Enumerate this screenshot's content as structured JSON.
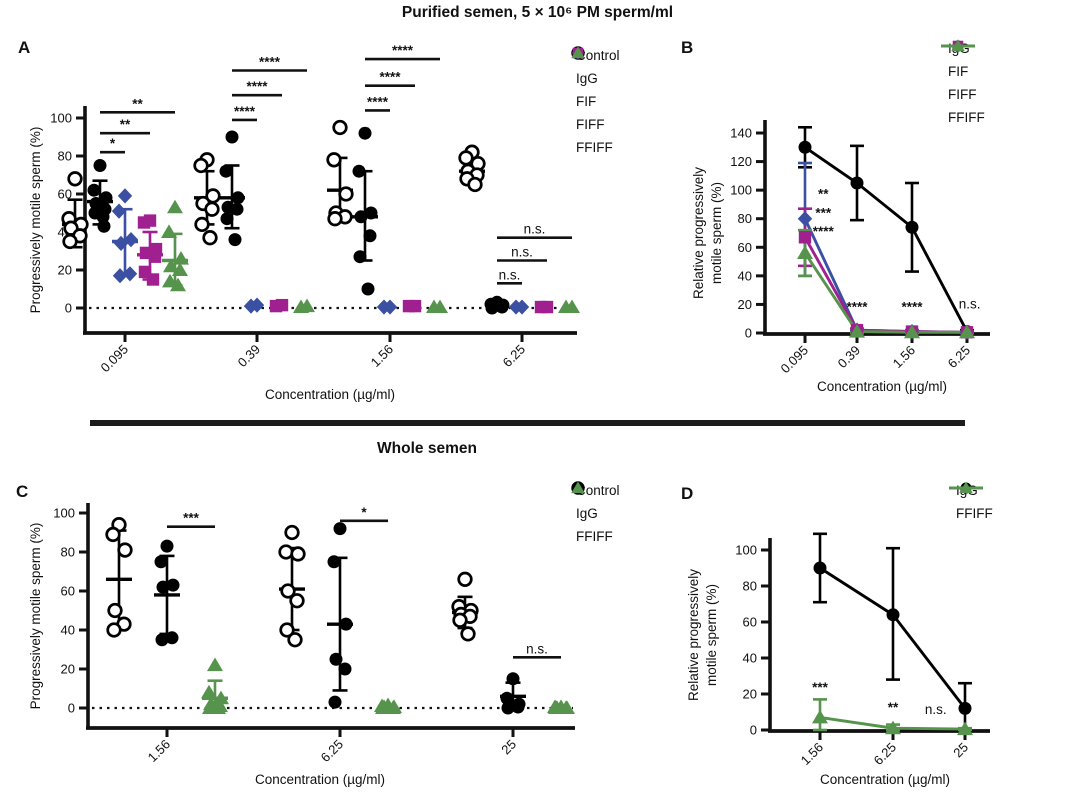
{
  "figure": {
    "top_title": "Purified semen, 5 × 10⁶ PM sperm/ml",
    "bottom_title": "Whole semen",
    "panel_labels": {
      "A": "A",
      "B": "B",
      "C": "C",
      "D": "D"
    }
  },
  "colors": {
    "black": "#000000",
    "blue": "#3B50A2",
    "magenta": "#A0208F",
    "green": "#56934C"
  },
  "chart_data": [
    {
      "panel": "A",
      "type": "scatter",
      "xlabel": "Concentration (µg/ml)",
      "ylabel": "Progressively motile sperm (%)",
      "ylim": [
        0,
        100
      ],
      "yticks": [
        0,
        20,
        40,
        60,
        80,
        100
      ],
      "categories": [
        "0.095",
        "0.39",
        "1.56",
        "6.25"
      ],
      "legend": [
        {
          "label": "Control",
          "marker": "circle-open",
          "color": "#000000"
        },
        {
          "label": "IgG",
          "marker": "circle",
          "color": "#000000"
        },
        {
          "label": "FIF",
          "marker": "diamond",
          "color": "#3B50A2"
        },
        {
          "label": "FIFF",
          "marker": "square",
          "color": "#A0208F"
        },
        {
          "label": "FFIFF",
          "marker": "triangle",
          "color": "#56934C"
        }
      ],
      "series": [
        {
          "name": "Control",
          "marker": "circle-open",
          "color": "#000000",
          "groups": [
            {
              "points": [
                68,
                47,
                44,
                42,
                38,
                35
              ],
              "mean": 44,
              "lo": 32,
              "hi": 57
            },
            {
              "points": [
                78,
                75,
                59,
                55,
                52,
                44,
                37
              ],
              "mean": 58,
              "lo": 44,
              "hi": 72
            },
            {
              "points": [
                95,
                78,
                60,
                50,
                48,
                47
              ],
              "mean": 62,
              "lo": 47,
              "hi": 79
            },
            {
              "points": [
                82,
                79,
                76,
                72,
                70,
                68,
                65
              ],
              "mean": 72,
              "lo": 65,
              "hi": 79
            }
          ]
        },
        {
          "name": "IgG",
          "marker": "circle",
          "color": "#000000",
          "groups": [
            {
              "points": [
                75,
                62,
                58,
                55,
                52,
                50,
                48,
                43
              ],
              "mean": 56,
              "lo": 44,
              "hi": 67
            },
            {
              "points": [
                90,
                72,
                58,
                53,
                52,
                47,
                36
              ],
              "mean": 58,
              "lo": 42,
              "hi": 75
            },
            {
              "points": [
                92,
                72,
                50,
                48,
                38,
                27,
                10
              ],
              "mean": 48,
              "lo": 25,
              "hi": 72
            },
            {
              "points": [
                3,
                2,
                1.5,
                1,
                0.5,
                0
              ],
              "mean": null,
              "lo": null,
              "hi": null
            }
          ]
        },
        {
          "name": "FIF",
          "marker": "diamond",
          "color": "#3B50A2",
          "groups": [
            {
              "points": [
                59,
                51,
                36,
                34,
                18,
                17
              ],
              "mean": 35,
              "lo": 17,
              "hi": 52
            },
            {
              "points": [
                1.5,
                1
              ],
              "mean": null,
              "lo": null,
              "hi": null
            },
            {
              "points": [
                0.5,
                0.5
              ],
              "mean": null,
              "lo": null,
              "hi": null
            },
            {
              "points": [
                0.5,
                0.5
              ],
              "mean": null,
              "lo": null,
              "hi": null
            }
          ]
        },
        {
          "name": "FIFF",
          "marker": "square",
          "color": "#A0208F",
          "groups": [
            {
              "points": [
                46,
                45,
                31,
                29,
                27,
                19,
                15
              ],
              "mean": 28,
              "lo": 15,
              "hi": 40
            },
            {
              "points": [
                1.5,
                1
              ],
              "mean": null,
              "lo": null,
              "hi": null
            },
            {
              "points": [
                1,
                1
              ],
              "mean": null,
              "lo": null,
              "hi": null
            },
            {
              "points": [
                0.5,
                0.5
              ],
              "mean": null,
              "lo": null,
              "hi": null
            }
          ]
        },
        {
          "name": "FFIFF",
          "marker": "triangle",
          "color": "#56934C",
          "groups": [
            {
              "points": [
                53,
                40,
                26,
                22,
                20,
                14,
                12
              ],
              "mean": 25,
              "lo": 12,
              "hi": 39
            },
            {
              "points": [
                1,
                0.5
              ],
              "mean": null,
              "lo": null,
              "hi": null
            },
            {
              "points": [
                0.5,
                0.5
              ],
              "mean": null,
              "lo": null,
              "hi": null
            },
            {
              "points": [
                0.5,
                0.5
              ],
              "mean": null,
              "lo": null,
              "hi": null
            }
          ]
        }
      ],
      "sig_bars": [
        {
          "group": 0,
          "from": 1,
          "to": 2,
          "y": 82,
          "label": "*"
        },
        {
          "group": 0,
          "from": 1,
          "to": 3,
          "y": 92,
          "label": "**"
        },
        {
          "group": 0,
          "from": 1,
          "to": 4,
          "y": 103,
          "label": "**"
        },
        {
          "group": 1,
          "from": 1,
          "to": 2,
          "y": 99,
          "label": "****"
        },
        {
          "group": 1,
          "from": 1,
          "to": 3,
          "y": 112,
          "label": "****"
        },
        {
          "group": 1,
          "from": 1,
          "to": 4,
          "y": 125,
          "label": "****"
        },
        {
          "group": 2,
          "from": 1,
          "to": 2,
          "y": 104,
          "label": "****"
        },
        {
          "group": 2,
          "from": 1,
          "to": 3,
          "y": 117,
          "label": "****"
        },
        {
          "group": 2,
          "from": 1,
          "to": 4,
          "y": 131,
          "label": "****"
        },
        {
          "group": 3,
          "from": 1,
          "to": 2,
          "y": 13,
          "label": "n.s."
        },
        {
          "group": 3,
          "from": 1,
          "to": 3,
          "y": 25,
          "label": "n.s."
        },
        {
          "group": 3,
          "from": 1,
          "to": 4,
          "y": 37,
          "label": "n.s."
        }
      ]
    },
    {
      "panel": "B",
      "type": "line",
      "xlabel": "Concentration (µg/ml)",
      "ylabel_lines": [
        "Relative progressively",
        "motile sperm (%)"
      ],
      "ylim": [
        0,
        140
      ],
      "yticks": [
        0,
        20,
        40,
        60,
        80,
        100,
        120,
        140
      ],
      "categories": [
        "0.095",
        "0.39",
        "1.56",
        "6.25"
      ],
      "legend": [
        {
          "label": "IgG",
          "marker": "circle",
          "color": "#000000",
          "line": true
        },
        {
          "label": "FIF",
          "marker": "diamond",
          "color": "#3B50A2",
          "line": true
        },
        {
          "label": "FIFF",
          "marker": "square",
          "color": "#A0208F",
          "line": true
        },
        {
          "label": "FFIFF",
          "marker": "triangle",
          "color": "#56934C",
          "line": true
        }
      ],
      "series": [
        {
          "name": "IgG",
          "marker": "circle",
          "color": "#000000",
          "values": [
            130,
            105,
            74,
            1
          ],
          "lo": [
            116,
            79,
            43,
            0
          ],
          "hi": [
            144,
            131,
            105,
            2
          ]
        },
        {
          "name": "FIF",
          "marker": "diamond",
          "color": "#3B50A2",
          "values": [
            80,
            2,
            1,
            0.5
          ],
          "lo": [
            40,
            0,
            0,
            0
          ],
          "hi": [
            119,
            3,
            2,
            1
          ]
        },
        {
          "name": "FIFF",
          "marker": "square",
          "color": "#A0208F",
          "values": [
            67,
            2,
            1,
            0.5
          ],
          "lo": [
            47,
            0,
            0,
            0
          ],
          "hi": [
            87,
            3,
            2,
            1
          ]
        },
        {
          "name": "FFIFF",
          "marker": "triangle",
          "color": "#56934C",
          "values": [
            56,
            1,
            0.5,
            0.5
          ],
          "lo": [
            40,
            0,
            0,
            0
          ],
          "hi": [
            72,
            2,
            1,
            1
          ]
        }
      ],
      "annotations": [
        {
          "xi": 0,
          "dx": 0.35,
          "y": 94,
          "label": "**"
        },
        {
          "xi": 0,
          "dx": 0.35,
          "y": 81,
          "label": "***"
        },
        {
          "xi": 0,
          "dx": 0.35,
          "y": 68,
          "label": "****"
        },
        {
          "xi": 1,
          "dx": 0,
          "y": 15,
          "label": "****"
        },
        {
          "xi": 2,
          "dx": 0,
          "y": 15,
          "label": "****"
        },
        {
          "xi": 3,
          "dx": 0.05,
          "y": 17,
          "label": "n.s."
        }
      ]
    },
    {
      "panel": "C",
      "type": "scatter",
      "xlabel": "Concentration (µg/ml)",
      "ylabel": "Progressively motile sperm (%)",
      "ylim": [
        0,
        100
      ],
      "yticks": [
        0,
        20,
        40,
        60,
        80,
        100
      ],
      "categories": [
        "1.56",
        "6.25",
        "25"
      ],
      "legend": [
        {
          "label": "Control",
          "marker": "circle-open",
          "color": "#000000"
        },
        {
          "label": "IgG",
          "marker": "circle",
          "color": "#000000"
        },
        {
          "label": "FFIFF",
          "marker": "triangle",
          "color": "#56934C"
        }
      ],
      "series": [
        {
          "name": "Control",
          "marker": "circle-open",
          "color": "#000000",
          "groups": [
            {
              "points": [
                94,
                89,
                81,
                50,
                43,
                40
              ],
              "mean": 66,
              "lo": 43,
              "hi": 91
            },
            {
              "points": [
                90,
                80,
                79,
                60,
                55,
                40,
                35
              ],
              "mean": 61,
              "lo": 40,
              "hi": 82
            },
            {
              "points": [
                66,
                52,
                50,
                48,
                47,
                45,
                38
              ],
              "mean": 49,
              "lo": 41,
              "hi": 57
            }
          ]
        },
        {
          "name": "IgG",
          "marker": "circle",
          "color": "#000000",
          "groups": [
            {
              "points": [
                83,
                75,
                63,
                62,
                36,
                35
              ],
              "mean": 58,
              "lo": 38,
              "hi": 78
            },
            {
              "points": [
                92,
                75,
                43,
                25,
                20,
                3
              ],
              "mean": 43,
              "lo": 9,
              "hi": 77
            },
            {
              "points": [
                15,
                5,
                2,
                1,
                0.5,
                0
              ],
              "mean": 6,
              "lo": 0,
              "hi": 13
            }
          ]
        },
        {
          "name": "FFIFF",
          "marker": "triangle",
          "color": "#56934C",
          "groups": [
            {
              "points": [
                22,
                8,
                5,
                2,
                1,
                0,
                0
              ],
              "mean": 5,
              "lo": 0,
              "hi": 14
            },
            {
              "points": [
                1.5,
                1,
                0.5,
                0.5,
                0,
                0
              ],
              "mean": null,
              "lo": null,
              "hi": null
            },
            {
              "points": [
                0.5,
                0.5,
                0,
                0,
                0,
                0
              ],
              "mean": null,
              "lo": null,
              "hi": null
            }
          ]
        }
      ],
      "sig_bars": [
        {
          "group": 0,
          "from": 1,
          "to": 2,
          "y": 93,
          "label": "***"
        },
        {
          "group": 1,
          "from": 1,
          "to": 2,
          "y": 96,
          "label": "*"
        },
        {
          "group": 2,
          "from": 1,
          "to": 2,
          "y": 26,
          "label": "n.s."
        }
      ]
    },
    {
      "panel": "D",
      "type": "line",
      "xlabel": "Concentration (µg/ml)",
      "ylabel_lines": [
        "Relative progressively",
        "motile sperm (%)"
      ],
      "ylim": [
        0,
        100
      ],
      "yticks": [
        0,
        20,
        40,
        60,
        80,
        100
      ],
      "categories": [
        "1.56",
        "6.25",
        "25"
      ],
      "legend": [
        {
          "label": "IgG",
          "marker": "circle",
          "color": "#000000",
          "line": true
        },
        {
          "label": "FFIFF",
          "marker": "triangle",
          "color": "#56934C",
          "line": true
        }
      ],
      "series": [
        {
          "name": "IgG",
          "marker": "circle",
          "color": "#000000",
          "values": [
            90,
            64,
            12
          ],
          "lo": [
            71,
            28,
            0
          ],
          "hi": [
            109,
            101,
            26
          ]
        },
        {
          "name": "FFIFF",
          "marker": "triangle",
          "color": "#56934C",
          "values": [
            7,
            1,
            0.5
          ],
          "lo": [
            0,
            0,
            0
          ],
          "hi": [
            17,
            3,
            1
          ]
        }
      ],
      "annotations": [
        {
          "xi": 0,
          "dx": 0,
          "y": 21,
          "label": "***"
        },
        {
          "xi": 1,
          "dx": 0,
          "y": 10,
          "label": "**"
        },
        {
          "xi": 2,
          "dx": -0.4,
          "y": 9,
          "label": "n.s."
        }
      ]
    }
  ]
}
